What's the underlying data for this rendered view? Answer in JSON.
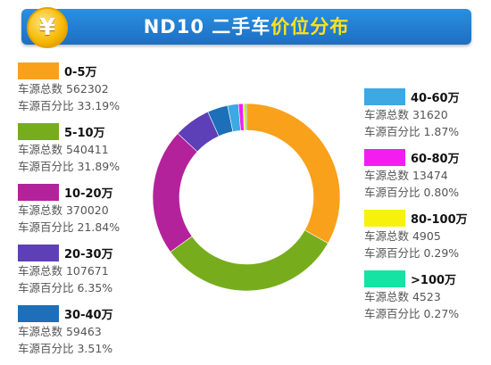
{
  "header": {
    "coin_symbol": "¥",
    "title_prefix": "ND10 二手车",
    "title_highlight": "价位分布"
  },
  "legend_labels": {
    "count_label": "车源总数",
    "percent_label": "车源百分比"
  },
  "chart_data": {
    "type": "pie",
    "variant": "donut",
    "title": "ND10 二手车价位分布",
    "slices": [
      {
        "label": "0-5万",
        "count": "562302",
        "percent": "33.19%",
        "value": 33.19,
        "color": "#f9a11b"
      },
      {
        "label": "5-10万",
        "count": "540411",
        "percent": "31.89%",
        "value": 31.89,
        "color": "#77ad1c"
      },
      {
        "label": "10-20万",
        "count": "370020",
        "percent": "21.84%",
        "value": 21.84,
        "color": "#b3229b"
      },
      {
        "label": "20-30万",
        "count": "107671",
        "percent": "6.35%",
        "value": 6.35,
        "color": "#5d40b8"
      },
      {
        "label": "30-40万",
        "count": "59463",
        "percent": "3.51%",
        "value": 3.51,
        "color": "#1c6fb8"
      },
      {
        "label": "40-60万",
        "count": "31620",
        "percent": "1.87%",
        "value": 1.87,
        "color": "#3ea8e2"
      },
      {
        "label": "60-80万",
        "count": "13474",
        "percent": "0.80%",
        "value": 0.8,
        "color": "#f31df0"
      },
      {
        "label": "80-100万",
        "count": "4905",
        "percent": "0.29%",
        "value": 0.29,
        "color": "#f7f20c"
      },
      {
        "label": ">100万",
        "count": "4523",
        "percent": "0.27%",
        "value": 0.27,
        "color": "#14e3a4"
      }
    ]
  }
}
